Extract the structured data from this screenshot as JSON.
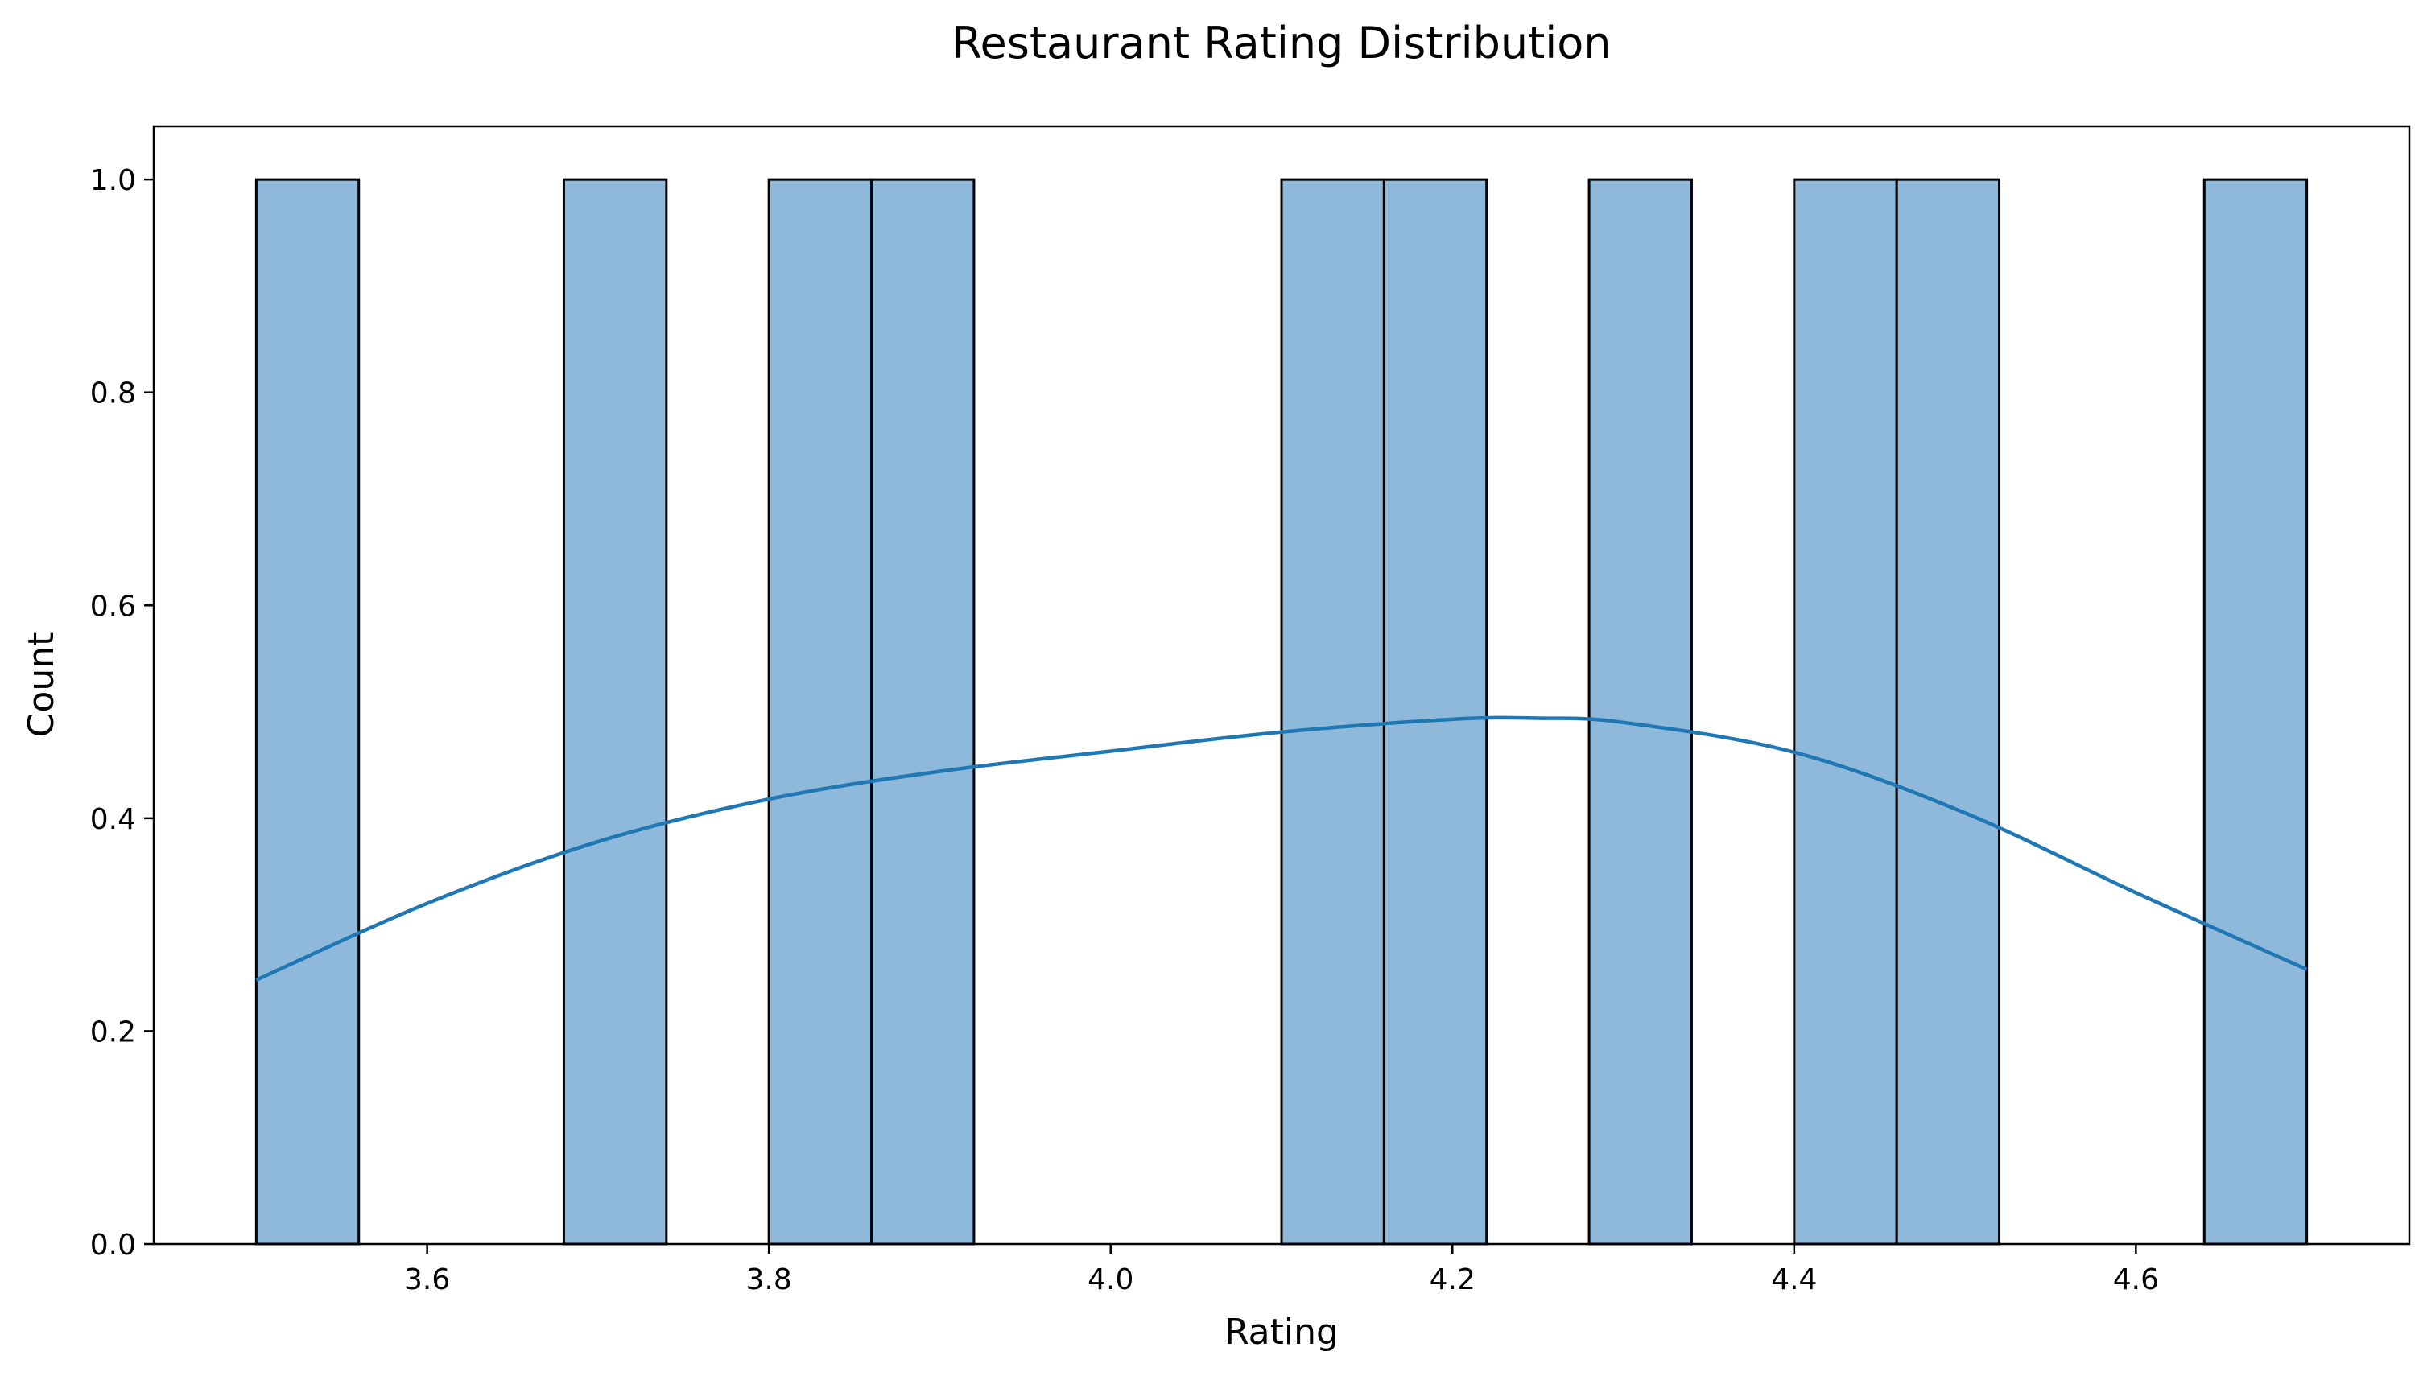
{
  "chart_data": {
    "type": "bar",
    "title": "Restaurant Rating Distribution",
    "xlabel": "Rating",
    "ylabel": "Count",
    "xlim": [
      3.44,
      4.76
    ],
    "ylim": [
      0,
      1.05
    ],
    "x_ticks": [
      "3.6",
      "3.8",
      "4.0",
      "4.2",
      "4.4",
      "4.6"
    ],
    "y_ticks": [
      "0.0",
      "0.2",
      "0.4",
      "0.6",
      "0.8",
      "1.0"
    ],
    "bin_width": 0.06,
    "bins": [
      {
        "start": 3.5,
        "count": 1
      },
      {
        "start": 3.68,
        "count": 1
      },
      {
        "start": 3.8,
        "count": 1
      },
      {
        "start": 3.86,
        "count": 1
      },
      {
        "start": 4.1,
        "count": 1
      },
      {
        "start": 4.16,
        "count": 1
      },
      {
        "start": 4.28,
        "count": 1
      },
      {
        "start": 4.4,
        "count": 1
      },
      {
        "start": 4.46,
        "count": 1
      },
      {
        "start": 4.64,
        "count": 1
      }
    ],
    "kde": {
      "x": [
        3.5,
        3.6,
        3.7,
        3.8,
        3.9,
        4.0,
        4.1,
        4.2,
        4.25,
        4.3,
        4.4,
        4.5,
        4.6,
        4.7
      ],
      "y": [
        0.248,
        0.32,
        0.378,
        0.418,
        0.444,
        0.463,
        0.481,
        0.493,
        0.494,
        0.49,
        0.462,
        0.405,
        0.33,
        0.258
      ]
    },
    "grid": false,
    "legend": "none",
    "colors": {
      "bar_fill": "#8fb9da",
      "bar_edge": "#000000",
      "kde_line": "#1f77b4"
    }
  }
}
